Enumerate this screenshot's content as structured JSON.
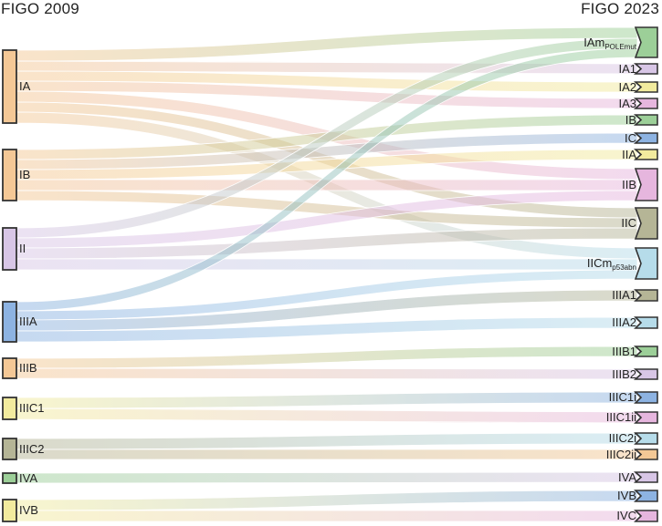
{
  "headers": {
    "left": "FIGO 2009",
    "right": "FIGO 2023"
  },
  "colors": {
    "orange": "#f4c896",
    "purple": "#d8c6e6",
    "blue": "#8db3e2",
    "green": "#9ccf98",
    "yellow": "#f2eb9e",
    "olive": "#b5b596",
    "pink": "#e6b6de",
    "lightblue": "#b6dcea"
  },
  "chart_data": {
    "type": "sankey",
    "left_nodes": [
      {
        "id": "IA",
        "label": "IA",
        "color": "orange"
      },
      {
        "id": "IB",
        "label": "IB",
        "color": "orange"
      },
      {
        "id": "II",
        "label": "II",
        "color": "purple"
      },
      {
        "id": "IIIA",
        "label": "IIIA",
        "color": "blue"
      },
      {
        "id": "IIIB",
        "label": "IIIB",
        "color": "orange"
      },
      {
        "id": "IIIC1",
        "label": "IIIC1",
        "color": "yellow"
      },
      {
        "id": "IIIC2",
        "label": "IIIC2",
        "color": "olive"
      },
      {
        "id": "IVA",
        "label": "IVA",
        "color": "green"
      },
      {
        "id": "IVB",
        "label": "IVB",
        "color": "yellow"
      }
    ],
    "right_nodes": [
      {
        "id": "IAm",
        "label": "IAm",
        "sub": "POLEmut",
        "color": "green"
      },
      {
        "id": "IA1",
        "label": "IA1",
        "sub": "",
        "color": "purple"
      },
      {
        "id": "IA2",
        "label": "IA2",
        "sub": "",
        "color": "yellow"
      },
      {
        "id": "IA3",
        "label": "IA3",
        "sub": "",
        "color": "pink"
      },
      {
        "id": "IB2",
        "label": "IB",
        "sub": "",
        "color": "green"
      },
      {
        "id": "IC",
        "label": "IC",
        "sub": "",
        "color": "blue"
      },
      {
        "id": "IIA",
        "label": "IIA",
        "sub": "",
        "color": "yellow"
      },
      {
        "id": "IIB",
        "label": "IIB",
        "sub": "",
        "color": "pink"
      },
      {
        "id": "IIC",
        "label": "IIC",
        "sub": "",
        "color": "olive"
      },
      {
        "id": "IICm",
        "label": "IICm",
        "sub": "p53abn",
        "color": "lightblue"
      },
      {
        "id": "IIIA1",
        "label": "IIIA1",
        "sub": "",
        "color": "olive"
      },
      {
        "id": "IIIA2",
        "label": "IIIA2",
        "sub": "",
        "color": "lightblue"
      },
      {
        "id": "IIIB1",
        "label": "IIIB1",
        "sub": "",
        "color": "green"
      },
      {
        "id": "IIIB2",
        "label": "IIIB2",
        "sub": "",
        "color": "purple"
      },
      {
        "id": "IIIC1i",
        "label": "IIIC1i",
        "sub": "",
        "color": "blue"
      },
      {
        "id": "IIIC1ii",
        "label": "IIIC1ii",
        "sub": "",
        "color": "pink"
      },
      {
        "id": "IIIC2i",
        "label": "IIIC2i",
        "sub": "",
        "color": "lightblue"
      },
      {
        "id": "IIIC2ii",
        "label": "IIIC2ii",
        "sub": "",
        "color": "orange"
      },
      {
        "id": "IVA2",
        "label": "IVA",
        "sub": "",
        "color": "purple"
      },
      {
        "id": "IVB2",
        "label": "IVB",
        "sub": "",
        "color": "blue"
      },
      {
        "id": "IVC",
        "label": "IVC",
        "sub": "",
        "color": "pink"
      }
    ],
    "links": [
      {
        "from": "IA",
        "to": "IAm",
        "value": 12
      },
      {
        "from": "IA",
        "to": "IA1",
        "value": 11
      },
      {
        "from": "IA",
        "to": "IA2",
        "value": 11
      },
      {
        "from": "IA",
        "to": "IA3",
        "value": 11
      },
      {
        "from": "IA",
        "to": "IIB",
        "value": 12
      },
      {
        "from": "IA",
        "to": "IIC",
        "value": 11
      },
      {
        "from": "IA",
        "to": "IICm",
        "value": 12
      },
      {
        "from": "IB",
        "to": "IB2",
        "value": 11
      },
      {
        "from": "IB",
        "to": "IC",
        "value": 11
      },
      {
        "from": "IB",
        "to": "IIA",
        "value": 11
      },
      {
        "from": "IB",
        "to": "IIB",
        "value": 12
      },
      {
        "from": "IB",
        "to": "IIC",
        "value": 11
      },
      {
        "from": "II",
        "to": "IAm",
        "value": 11
      },
      {
        "from": "II",
        "to": "IIB",
        "value": 11
      },
      {
        "from": "II",
        "to": "IIC",
        "value": 12
      },
      {
        "from": "II",
        "to": "IICm",
        "value": 12
      },
      {
        "from": "IIIA",
        "to": "IAm",
        "value": 10
      },
      {
        "from": "IIIA",
        "to": "IICm",
        "value": 10
      },
      {
        "from": "IIIA",
        "to": "IIIA1",
        "value": 12
      },
      {
        "from": "IIIA",
        "to": "IIIA2",
        "value": 12
      },
      {
        "from": "IIIB",
        "to": "IIIB1",
        "value": 11
      },
      {
        "from": "IIIB",
        "to": "IIIB2",
        "value": 11
      },
      {
        "from": "IIIC1",
        "to": "IIIC1i",
        "value": 12
      },
      {
        "from": "IIIC1",
        "to": "IIIC1ii",
        "value": 12
      },
      {
        "from": "IIIC2",
        "to": "IIIC2i",
        "value": 12
      },
      {
        "from": "IIIC2",
        "to": "IIIC2ii",
        "value": 11
      },
      {
        "from": "IVA",
        "to": "IVA2",
        "value": 11
      },
      {
        "from": "IVB",
        "to": "IVB2",
        "value": 12
      },
      {
        "from": "IVB",
        "to": "IVC",
        "value": 12
      }
    ]
  }
}
